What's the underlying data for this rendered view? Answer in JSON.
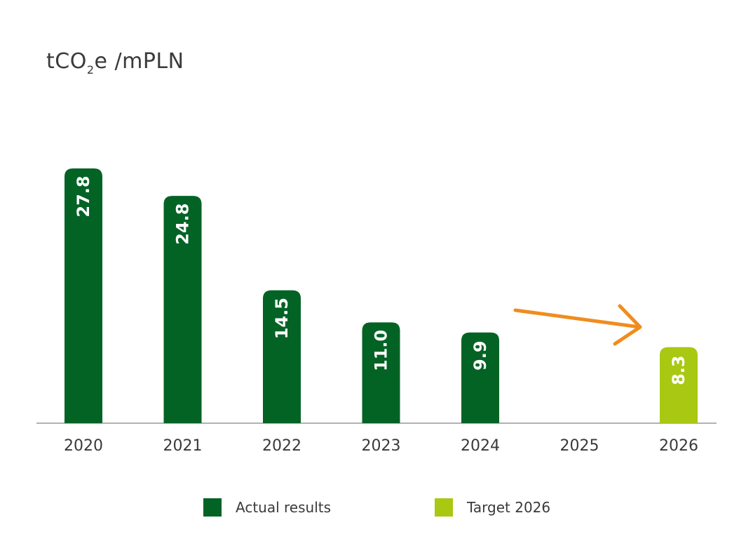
{
  "title": {
    "pre": "tCO",
    "sub": "2",
    "post": "e /mPLN"
  },
  "colors": {
    "actual": "#036325",
    "target": "#a8c812",
    "arrow": "#f08c1e",
    "axis": "#999999",
    "label": "#3a3a3a"
  },
  "legend": {
    "actual_label": "Actual results",
    "target_label": "Target 2026"
  },
  "chart_data": {
    "type": "bar",
    "categories": [
      "2020",
      "2021",
      "2022",
      "2023",
      "2024",
      "2025",
      "2026"
    ],
    "series": [
      {
        "name": "Actual results",
        "values": [
          27.8,
          24.8,
          14.5,
          11.0,
          9.9,
          null,
          null
        ]
      },
      {
        "name": "Target 2026",
        "values": [
          null,
          null,
          null,
          null,
          null,
          null,
          8.3
        ]
      }
    ],
    "data_labels": [
      "27.8",
      "24.8",
      "14.5",
      "11.0",
      "9.9",
      "",
      "8.3"
    ],
    "ylabel": "tCO2e /mPLN",
    "ylim": [
      0,
      27.8
    ],
    "grid": false,
    "legend_position": "bottom",
    "annotations": [
      {
        "type": "arrow",
        "from": "2024",
        "to": "2026",
        "meaning": "downward trend toward target"
      }
    ]
  }
}
